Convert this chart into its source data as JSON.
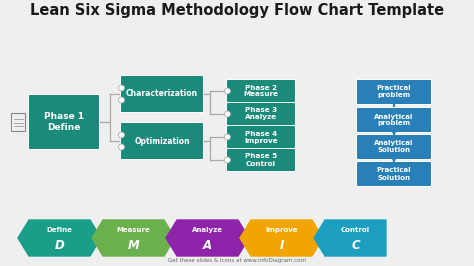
{
  "title": "Lean Six Sigma Methodology Flow Chart Template",
  "title_fontsize": 10.5,
  "teal": "#1a8a7a",
  "blue": "#2980b9",
  "arrow_colors": [
    "#1a9e8a",
    "#6ab04c",
    "#8e24aa",
    "#f0a500",
    "#1b9ec0"
  ],
  "arrow_labels": [
    "Define",
    "Measure",
    "Analyze",
    "Improve",
    "Control"
  ],
  "arrow_letters": [
    "D",
    "M",
    "A",
    "I",
    "C"
  ],
  "phase1_label": "Phase 1\nDefine",
  "charact_label": "Characterization",
  "optim_label": "Optimization",
  "phases": [
    "Phase 2\nMeasure",
    "Phase 3\nAnalyze",
    "Phase 4\nImprove",
    "Phase 5\nControl"
  ],
  "right_boxes": [
    "Practical\nproblem",
    "Analytical\nproblem",
    "Analytical\nSolution",
    "Practical\nSolution"
  ],
  "footer": "Get these slides & icons at www.infoDiagram.com",
  "white": "#ffffff",
  "light_bg": "#efefef",
  "line_color": "#aaaaaa",
  "arrow_line_color": "#2980b9"
}
